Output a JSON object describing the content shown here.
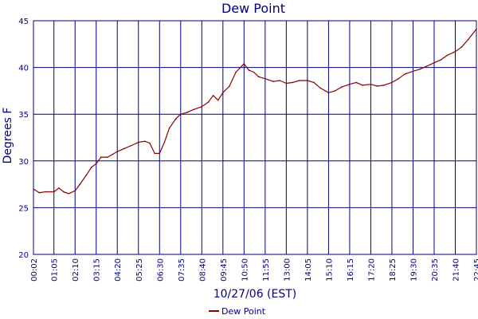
{
  "chart_data": {
    "type": "line",
    "title": "Dew Point",
    "xlabel": "10/27/06 (EST)",
    "ylabel": "Degrees F",
    "ylim": [
      20,
      45
    ],
    "y_ticks": [
      "20",
      "25",
      "30",
      "35",
      "40",
      "45"
    ],
    "x_tick_labels": [
      "00:02",
      "01:05",
      "02:10",
      "03:15",
      "04:20",
      "05:25",
      "06:30",
      "07:35",
      "08:40",
      "09:45",
      "10:50",
      "11:55",
      "13:00",
      "14:05",
      "15:10",
      "16:15",
      "17:20",
      "18:25",
      "19:30",
      "20:35",
      "21:40",
      "22:45"
    ],
    "grid": true,
    "legend_position": "bottom",
    "series": [
      {
        "name": "Dew Point",
        "color": "#8b0000",
        "x": [
          "00:02",
          "00:20",
          "00:40",
          "01:05",
          "01:20",
          "01:35",
          "01:50",
          "02:10",
          "02:25",
          "02:45",
          "03:00",
          "03:15",
          "03:30",
          "03:50",
          "04:05",
          "04:20",
          "04:40",
          "05:00",
          "05:25",
          "05:45",
          "06:00",
          "06:15",
          "06:30",
          "06:45",
          "07:00",
          "07:20",
          "07:35",
          "07:55",
          "08:15",
          "08:40",
          "09:00",
          "09:15",
          "09:30",
          "09:45",
          "10:05",
          "10:25",
          "10:50",
          "11:05",
          "11:20",
          "11:35",
          "11:55",
          "12:20",
          "12:40",
          "13:00",
          "13:20",
          "13:40",
          "14:05",
          "14:25",
          "14:45",
          "15:10",
          "15:30",
          "15:50",
          "16:15",
          "16:35",
          "16:55",
          "17:20",
          "17:40",
          "18:00",
          "18:25",
          "18:45",
          "19:05",
          "19:30",
          "19:50",
          "20:10",
          "20:35",
          "20:55",
          "21:15",
          "21:40",
          "22:00",
          "22:20",
          "22:45"
        ],
        "values": [
          27.0,
          26.6,
          26.7,
          26.7,
          27.1,
          26.7,
          26.5,
          26.8,
          27.5,
          28.5,
          29.3,
          29.7,
          30.4,
          30.4,
          30.7,
          31.0,
          31.3,
          31.6,
          32.0,
          32.1,
          31.9,
          30.8,
          30.8,
          32.0,
          33.5,
          34.5,
          35.0,
          35.2,
          35.5,
          35.8,
          36.3,
          37.0,
          36.5,
          37.3,
          38.0,
          39.5,
          40.4,
          39.7,
          39.5,
          39.0,
          38.8,
          38.5,
          38.6,
          38.3,
          38.4,
          38.6,
          38.6,
          38.4,
          37.8,
          37.3,
          37.5,
          37.9,
          38.2,
          38.4,
          38.1,
          38.2,
          38.0,
          38.1,
          38.4,
          38.8,
          39.3,
          39.6,
          39.8,
          40.1,
          40.5,
          40.8,
          41.3,
          41.7,
          42.2,
          43.0,
          44.1
        ]
      }
    ]
  }
}
